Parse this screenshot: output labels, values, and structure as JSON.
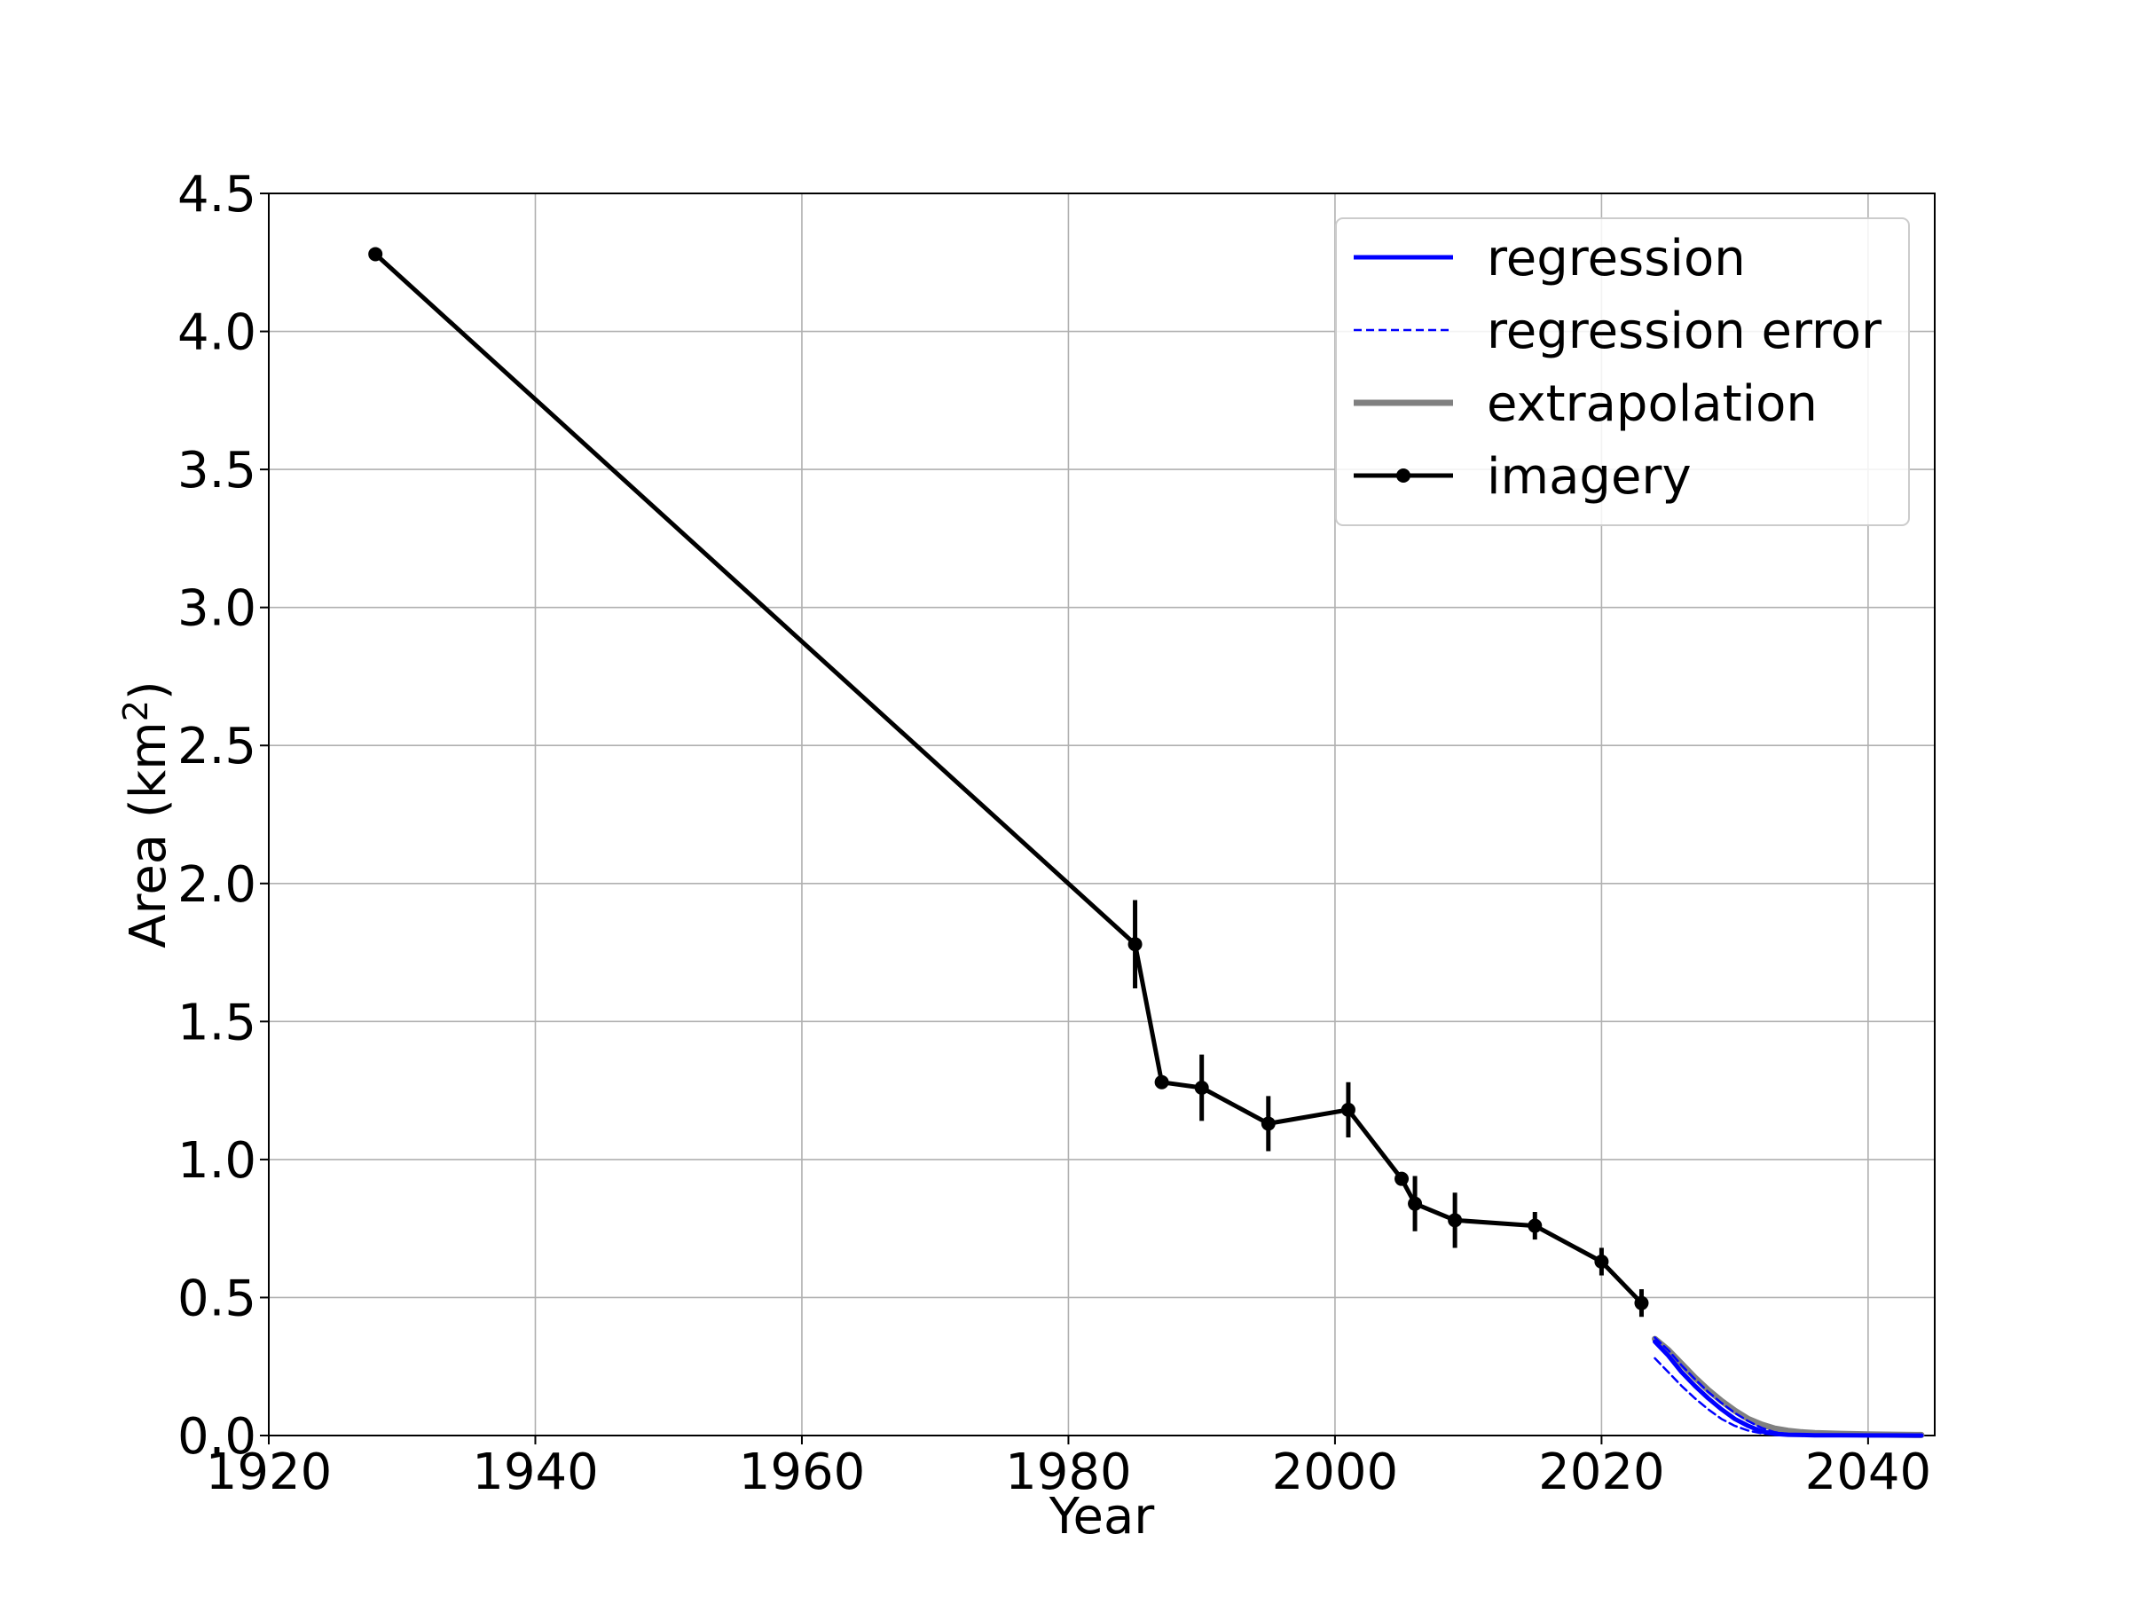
{
  "chart_data": {
    "type": "line",
    "title": "",
    "xlabel": "Year",
    "ylabel": "Area (km",
    "ylabel_sup": "2",
    "ylabel_close": ")",
    "xlim": [
      1920,
      2045
    ],
    "ylim": [
      0.0,
      4.5
    ],
    "xticks": [
      1920,
      1940,
      1960,
      1980,
      2000,
      2020,
      2040
    ],
    "xtick_labels": [
      "1920",
      "1940",
      "1960",
      "1980",
      "2000",
      "2020",
      "2040"
    ],
    "yticks": [
      0.0,
      0.5,
      1.0,
      1.5,
      2.0,
      2.5,
      3.0,
      3.5,
      4.0,
      4.5
    ],
    "ytick_labels": [
      "0.0",
      "0.5",
      "1.0",
      "1.5",
      "2.0",
      "2.5",
      "3.0",
      "3.5",
      "4.0",
      "4.5"
    ],
    "grid": true,
    "legend_position": "top-right",
    "series": [
      {
        "name": "regression",
        "style": "solid",
        "color": "#0000ff",
        "x": [
          2024,
          2025,
          2026,
          2027,
          2028,
          2029,
          2030,
          2031,
          2032,
          2033,
          2034,
          2035,
          2036,
          2038,
          2040,
          2042,
          2044
        ],
        "y": [
          0.34,
          0.29,
          0.23,
          0.18,
          0.135,
          0.095,
          0.06,
          0.035,
          0.015,
          0.006,
          0.003,
          0.002,
          0.001,
          0.0005,
          0.0003,
          0.0002,
          0.0001
        ]
      },
      {
        "name": "regression error",
        "style": "dashed",
        "color": "#0000ff",
        "x": [
          2024,
          2025,
          2026,
          2027,
          2028,
          2029,
          2030,
          2031,
          2032,
          2033,
          2034
        ],
        "y": [
          0.28,
          0.23,
          0.18,
          0.135,
          0.095,
          0.06,
          0.035,
          0.018,
          0.008,
          0.003,
          0.001
        ]
      },
      {
        "name": "regression error",
        "style": "dashed",
        "color": "#0000ff",
        "x": [
          2024,
          2025,
          2026,
          2027,
          2028,
          2029,
          2030,
          2031,
          2032,
          2033,
          2034,
          2035,
          2036
        ],
        "y": [
          0.355,
          0.31,
          0.255,
          0.205,
          0.158,
          0.118,
          0.082,
          0.052,
          0.028,
          0.012,
          0.005,
          0.002,
          0.001
        ]
      },
      {
        "name": "extrapolation",
        "style": "solid",
        "color": "#808080",
        "x": [
          2024,
          2025,
          2026,
          2027,
          2028,
          2029,
          2030,
          2031,
          2032,
          2033,
          2034,
          2035,
          2036,
          2038,
          2040,
          2042,
          2044
        ],
        "y": [
          0.35,
          0.31,
          0.26,
          0.21,
          0.165,
          0.125,
          0.09,
          0.06,
          0.04,
          0.025,
          0.017,
          0.012,
          0.009,
          0.006,
          0.004,
          0.003,
          0.002
        ]
      },
      {
        "name": "imagery",
        "style": "solid-marker",
        "color": "#000000",
        "x": [
          1928,
          1985,
          1987,
          1990,
          1995,
          2001,
          2005,
          2006,
          2009,
          2015,
          2020,
          2023
        ],
        "y": [
          4.28,
          1.78,
          1.28,
          1.26,
          1.13,
          1.18,
          0.93,
          0.84,
          0.78,
          0.76,
          0.63,
          0.48
        ],
        "err": [
          0,
          0.16,
          0,
          0.12,
          0.1,
          0.1,
          0,
          0.1,
          0.1,
          0.05,
          0.05,
          0.05
        ]
      }
    ],
    "legend": [
      {
        "label": "regression",
        "style": "solid",
        "color": "#0000ff"
      },
      {
        "label": "regression error",
        "style": "dashed",
        "color": "#0000ff"
      },
      {
        "label": "extrapolation",
        "style": "solid",
        "color": "#808080"
      },
      {
        "label": "imagery",
        "style": "solid-marker",
        "color": "#000000"
      }
    ]
  }
}
